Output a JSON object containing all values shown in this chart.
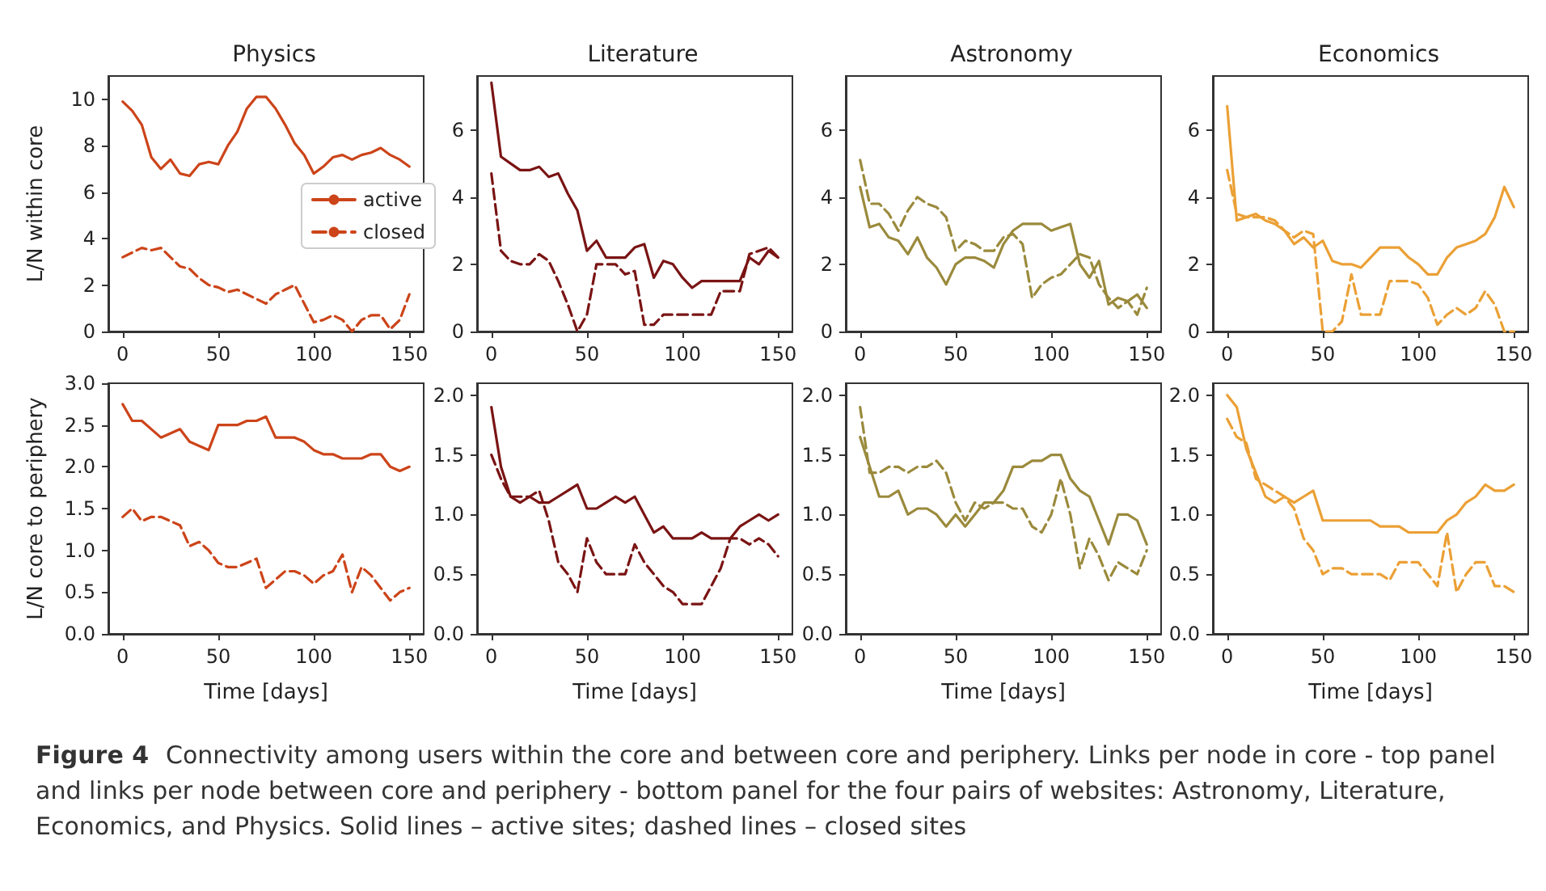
{
  "chart_data": [
    {
      "type": "line",
      "title": "Physics",
      "ylabel": "L/N within core",
      "xlim": [
        -7.5,
        157.5
      ],
      "xticks": [
        0,
        50,
        100,
        150
      ],
      "ylim": [
        0,
        11
      ],
      "yticks": [
        0,
        2,
        4,
        6,
        8,
        10
      ],
      "grid": false,
      "legend": "right",
      "annotations": [
        "Figure 4",
        "Connectivity among users within the core and between core and periphery. Links per node in core - top panel and links per node between core and periphery - bottom panel for the four pairs of websites: Astronomy, Literature, Economics, and Physics. Solid lines – active sites; dashed lines – closed sites"
      ],
      "x": [
        0,
        5,
        10,
        15,
        20,
        25,
        30,
        35,
        40,
        45,
        50,
        55,
        60,
        65,
        70,
        75,
        80,
        85,
        90,
        95,
        100,
        105,
        110,
        115,
        120,
        125,
        130,
        135,
        140,
        145,
        150
      ],
      "series": [
        {
          "name": "active",
          "color": "#cc4419",
          "line_style": "solid",
          "values": [
            9.9,
            9.5,
            8.9,
            7.5,
            7.0,
            7.4,
            6.8,
            6.7,
            7.2,
            7.3,
            7.2,
            8.0,
            8.6,
            9.6,
            10.1,
            10.1,
            9.6,
            8.9,
            8.1,
            7.6,
            6.8,
            7.1,
            7.5,
            7.6,
            7.4,
            7.6,
            7.7,
            7.9,
            7.6,
            7.4,
            7.1
          ]
        },
        {
          "name": "closed",
          "color": "#cc4419",
          "line_style": "dashed",
          "values": [
            3.2,
            3.4,
            3.6,
            3.5,
            3.6,
            3.2,
            2.8,
            2.7,
            2.3,
            2.0,
            1.9,
            1.7,
            1.8,
            1.6,
            1.4,
            1.2,
            1.6,
            1.8,
            2.0,
            1.2,
            0.4,
            0.5,
            0.7,
            0.5,
            0.0,
            0.5,
            0.7,
            0.7,
            0.1,
            0.5,
            1.6
          ]
        }
      ]
    },
    {
      "type": "line",
      "title": "Literature",
      "xlim": [
        -7.5,
        157.5
      ],
      "xticks": [
        0,
        50,
        100,
        150
      ],
      "ylim": [
        0,
        7.6
      ],
      "yticks": [
        0,
        2,
        4,
        6
      ],
      "grid": false,
      "x": [
        0,
        5,
        10,
        15,
        20,
        25,
        30,
        35,
        40,
        45,
        50,
        55,
        60,
        65,
        70,
        75,
        80,
        85,
        90,
        95,
        100,
        105,
        110,
        115,
        120,
        125,
        130,
        135,
        140,
        145,
        150
      ],
      "series": [
        {
          "color": "#7a1414",
          "line_style": "solid",
          "values": [
            7.4,
            5.2,
            5.0,
            4.8,
            4.8,
            4.9,
            4.6,
            4.7,
            4.1,
            3.6,
            2.4,
            2.7,
            2.2,
            2.2,
            2.2,
            2.5,
            2.6,
            1.6,
            2.1,
            2.0,
            1.6,
            1.3,
            1.5,
            1.5,
            1.5,
            1.5,
            1.5,
            2.2,
            2.0,
            2.4,
            2.2
          ]
        },
        {
          "color": "#7a1414",
          "line_style": "dashed",
          "values": [
            4.7,
            2.4,
            2.1,
            2.0,
            2.0,
            2.3,
            2.1,
            1.5,
            0.8,
            0.0,
            0.5,
            2.0,
            2.0,
            2.0,
            1.7,
            1.8,
            0.2,
            0.2,
            0.5,
            0.5,
            0.5,
            0.5,
            0.5,
            0.5,
            1.2,
            1.2,
            1.2,
            2.3,
            2.4,
            2.5,
            2.2
          ]
        }
      ]
    },
    {
      "type": "line",
      "title": "Astronomy",
      "xlim": [
        -7.5,
        157.5
      ],
      "xticks": [
        0,
        50,
        100,
        150
      ],
      "ylim": [
        0,
        7.6
      ],
      "yticks": [
        0,
        2,
        4,
        6
      ],
      "grid": false,
      "x": [
        0,
        5,
        10,
        15,
        20,
        25,
        30,
        35,
        40,
        45,
        50,
        55,
        60,
        65,
        70,
        75,
        80,
        85,
        90,
        95,
        100,
        105,
        110,
        115,
        120,
        125,
        130,
        135,
        140,
        145,
        150
      ],
      "series": [
        {
          "color": "#9a8a3c",
          "line_style": "solid",
          "values": [
            4.3,
            3.1,
            3.2,
            2.8,
            2.7,
            2.3,
            2.8,
            2.2,
            1.9,
            1.4,
            2.0,
            2.2,
            2.2,
            2.1,
            1.9,
            2.6,
            3.0,
            3.2,
            3.2,
            3.2,
            3.0,
            3.1,
            3.2,
            2.0,
            1.6,
            2.1,
            0.8,
            1.0,
            0.9,
            1.1,
            0.7
          ]
        },
        {
          "color": "#9a8a3c",
          "line_style": "dashed",
          "values": [
            5.1,
            3.8,
            3.8,
            3.5,
            3.0,
            3.6,
            4.0,
            3.8,
            3.7,
            3.4,
            2.4,
            2.7,
            2.6,
            2.4,
            2.4,
            2.8,
            2.9,
            2.6,
            1.0,
            1.4,
            1.6,
            1.7,
            2.0,
            2.3,
            2.2,
            1.4,
            1.0,
            0.7,
            0.9,
            0.5,
            1.3
          ]
        }
      ]
    },
    {
      "type": "line",
      "title": "Economics",
      "xlim": [
        -7.5,
        157.5
      ],
      "xticks": [
        0,
        50,
        100,
        150
      ],
      "ylim": [
        0,
        7.6
      ],
      "yticks": [
        0,
        2,
        4,
        6
      ],
      "grid": false,
      "x": [
        0,
        5,
        10,
        15,
        20,
        25,
        30,
        35,
        40,
        45,
        50,
        55,
        60,
        65,
        70,
        75,
        80,
        85,
        90,
        95,
        100,
        105,
        110,
        115,
        120,
        125,
        130,
        135,
        140,
        145,
        150
      ],
      "series": [
        {
          "color": "#eba035",
          "line_style": "solid",
          "values": [
            6.7,
            3.3,
            3.4,
            3.5,
            3.3,
            3.2,
            3.0,
            2.6,
            2.8,
            2.5,
            2.7,
            2.1,
            2.0,
            2.0,
            1.9,
            2.2,
            2.5,
            2.5,
            2.5,
            2.2,
            2.0,
            1.7,
            1.7,
            2.2,
            2.5,
            2.6,
            2.7,
            2.9,
            3.4,
            4.3,
            3.7
          ]
        },
        {
          "color": "#eba035",
          "line_style": "dashed",
          "values": [
            4.8,
            3.5,
            3.4,
            3.4,
            3.4,
            3.3,
            3.0,
            2.8,
            3.0,
            2.9,
            0.0,
            0.0,
            0.3,
            1.7,
            0.5,
            0.5,
            0.5,
            1.5,
            1.5,
            1.5,
            1.4,
            1.0,
            0.2,
            0.5,
            0.7,
            0.5,
            0.7,
            1.2,
            0.8,
            0.0,
            0.0
          ]
        }
      ]
    },
    {
      "type": "line",
      "ylabel": "L/N core to periphery",
      "xlabel": "Time [days]",
      "xlim": [
        -7.5,
        157.5
      ],
      "xticks": [
        0,
        50,
        100,
        150
      ],
      "ylim": [
        0,
        3
      ],
      "yticks": [
        {
          "value": 0,
          "label": "0.0"
        },
        0.5,
        {
          "value": 1,
          "label": "1.0"
        },
        1.5,
        {
          "value": 2,
          "label": "2.0"
        },
        2.5,
        {
          "value": 3,
          "label": "3.0"
        }
      ],
      "grid": false,
      "x": [
        0,
        5,
        10,
        15,
        20,
        25,
        30,
        35,
        40,
        45,
        50,
        55,
        60,
        65,
        70,
        75,
        80,
        85,
        90,
        95,
        100,
        105,
        110,
        115,
        120,
        125,
        130,
        135,
        140,
        145,
        150
      ],
      "series": [
        {
          "color": "#cc4419",
          "line_style": "solid",
          "values": [
            2.75,
            2.55,
            2.55,
            2.45,
            2.35,
            2.4,
            2.45,
            2.3,
            2.25,
            2.2,
            2.5,
            2.5,
            2.5,
            2.55,
            2.55,
            2.6,
            2.35,
            2.35,
            2.35,
            2.3,
            2.2,
            2.15,
            2.15,
            2.1,
            2.1,
            2.1,
            2.15,
            2.15,
            2.0,
            1.95,
            2.0
          ]
        },
        {
          "color": "#cc4419",
          "line_style": "dashed",
          "values": [
            1.4,
            1.5,
            1.35,
            1.4,
            1.4,
            1.35,
            1.3,
            1.05,
            1.1,
            1.0,
            0.85,
            0.8,
            0.8,
            0.85,
            0.9,
            0.55,
            0.65,
            0.75,
            0.75,
            0.7,
            0.6,
            0.7,
            0.75,
            0.95,
            0.5,
            0.8,
            0.7,
            0.55,
            0.4,
            0.5,
            0.55
          ]
        }
      ]
    },
    {
      "type": "line",
      "xlabel": "Time [days]",
      "xlim": [
        -7.5,
        157.5
      ],
      "xticks": [
        0,
        50,
        100,
        150
      ],
      "ylim": [
        0,
        2.1
      ],
      "yticks": [
        {
          "value": 0,
          "label": "0.0"
        },
        0.5,
        {
          "value": 1,
          "label": "1.0"
        },
        1.5,
        {
          "value": 2,
          "label": "2.0"
        }
      ],
      "grid": false,
      "x": [
        0,
        5,
        10,
        15,
        20,
        25,
        30,
        35,
        40,
        45,
        50,
        55,
        60,
        65,
        70,
        75,
        80,
        85,
        90,
        95,
        100,
        105,
        110,
        115,
        120,
        125,
        130,
        135,
        140,
        145,
        150
      ],
      "series": [
        {
          "color": "#7a1414",
          "line_style": "solid",
          "values": [
            1.9,
            1.4,
            1.15,
            1.1,
            1.15,
            1.1,
            1.1,
            1.15,
            1.2,
            1.25,
            1.05,
            1.05,
            1.1,
            1.15,
            1.1,
            1.15,
            1.0,
            0.85,
            0.9,
            0.8,
            0.8,
            0.8,
            0.85,
            0.8,
            0.8,
            0.8,
            0.9,
            0.95,
            1.0,
            0.95,
            1.0
          ]
        },
        {
          "color": "#7a1414",
          "line_style": "dashed",
          "values": [
            1.5,
            1.3,
            1.15,
            1.15,
            1.15,
            1.2,
            0.95,
            0.6,
            0.5,
            0.35,
            0.8,
            0.6,
            0.5,
            0.5,
            0.5,
            0.75,
            0.6,
            0.5,
            0.4,
            0.35,
            0.25,
            0.25,
            0.25,
            0.4,
            0.55,
            0.8,
            0.8,
            0.75,
            0.8,
            0.75,
            0.65
          ]
        }
      ]
    },
    {
      "type": "line",
      "xlabel": "Time [days]",
      "xlim": [
        -7.5,
        157.5
      ],
      "xticks": [
        0,
        50,
        100,
        150
      ],
      "ylim": [
        0,
        2.1
      ],
      "yticks": [
        {
          "value": 0,
          "label": "0.0"
        },
        0.5,
        {
          "value": 1,
          "label": "1.0"
        },
        1.5,
        {
          "value": 2,
          "label": "2.0"
        }
      ],
      "grid": false,
      "x": [
        0,
        5,
        10,
        15,
        20,
        25,
        30,
        35,
        40,
        45,
        50,
        55,
        60,
        65,
        70,
        75,
        80,
        85,
        90,
        95,
        100,
        105,
        110,
        115,
        120,
        125,
        130,
        135,
        140,
        145,
        150
      ],
      "series": [
        {
          "color": "#9a8a3c",
          "line_style": "solid",
          "values": [
            1.65,
            1.4,
            1.15,
            1.15,
            1.2,
            1.0,
            1.05,
            1.05,
            1.0,
            0.9,
            1.0,
            0.9,
            1.0,
            1.1,
            1.1,
            1.2,
            1.4,
            1.4,
            1.45,
            1.45,
            1.5,
            1.5,
            1.3,
            1.2,
            1.15,
            0.95,
            0.75,
            1.0,
            1.0,
            0.95,
            0.75
          ]
        },
        {
          "color": "#9a8a3c",
          "line_style": "dashed",
          "values": [
            1.9,
            1.35,
            1.35,
            1.4,
            1.4,
            1.35,
            1.4,
            1.4,
            1.45,
            1.35,
            1.1,
            0.95,
            1.1,
            1.05,
            1.1,
            1.1,
            1.05,
            1.05,
            0.9,
            0.85,
            1.0,
            1.3,
            1.0,
            0.55,
            0.8,
            0.65,
            0.45,
            0.6,
            0.55,
            0.5,
            0.7
          ]
        }
      ]
    },
    {
      "type": "line",
      "xlabel": "Time [days]",
      "xlim": [
        -7.5,
        157.5
      ],
      "xticks": [
        0,
        50,
        100,
        150
      ],
      "ylim": [
        0,
        2.1
      ],
      "yticks": [
        {
          "value": 0,
          "label": "0.0"
        },
        0.5,
        {
          "value": 1,
          "label": "1.0"
        },
        1.5,
        {
          "value": 2,
          "label": "2.0"
        }
      ],
      "grid": false,
      "x": [
        0,
        5,
        10,
        15,
        20,
        25,
        30,
        35,
        40,
        45,
        50,
        55,
        60,
        65,
        70,
        75,
        80,
        85,
        90,
        95,
        100,
        105,
        110,
        115,
        120,
        125,
        130,
        135,
        140,
        145,
        150
      ],
      "series": [
        {
          "color": "#eba035",
          "line_style": "solid",
          "values": [
            2.0,
            1.9,
            1.55,
            1.35,
            1.15,
            1.1,
            1.15,
            1.1,
            1.15,
            1.2,
            0.95,
            0.95,
            0.95,
            0.95,
            0.95,
            0.95,
            0.9,
            0.9,
            0.9,
            0.85,
            0.85,
            0.85,
            0.85,
            0.95,
            1.0,
            1.1,
            1.15,
            1.25,
            1.2,
            1.2,
            1.25
          ]
        },
        {
          "color": "#eba035",
          "line_style": "dashed",
          "values": [
            1.8,
            1.65,
            1.6,
            1.3,
            1.25,
            1.2,
            1.15,
            1.05,
            0.8,
            0.7,
            0.5,
            0.55,
            0.55,
            0.5,
            0.5,
            0.5,
            0.5,
            0.45,
            0.6,
            0.6,
            0.6,
            0.5,
            0.4,
            0.85,
            0.35,
            0.5,
            0.6,
            0.6,
            0.4,
            0.4,
            0.35
          ]
        }
      ]
    }
  ]
}
